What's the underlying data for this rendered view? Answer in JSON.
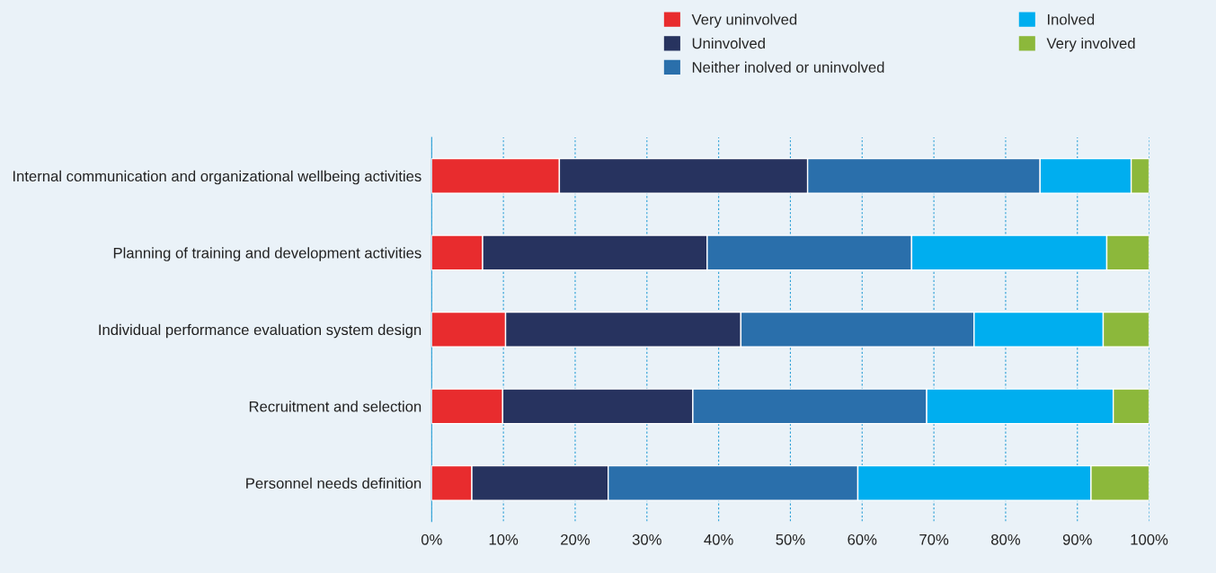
{
  "chart_data": {
    "type": "bar",
    "orientation": "horizontal",
    "stacked": true,
    "categories": [
      "Internal communication and organizational wellbeing activities",
      "Planning of training and development activities",
      "Individual performance evaluation system design",
      "Recruitment and selection",
      "Personnel needs definition"
    ],
    "series": [
      {
        "name": "Very uninvolved",
        "color": "#e82c2e",
        "values": [
          17.8,
          7.1,
          10.3,
          9.9,
          5.6
        ]
      },
      {
        "name": "Uninvolved",
        "color": "#27335f",
        "values": [
          34.6,
          31.3,
          32.8,
          26.5,
          19.0
        ]
      },
      {
        "name": "Neither inolved or uninvolved",
        "color": "#2a6fab",
        "values": [
          32.4,
          28.5,
          32.5,
          32.6,
          34.8
        ]
      },
      {
        "name": "Inolved",
        "color": "#00aeef",
        "values": [
          12.7,
          27.2,
          18.0,
          26.0,
          32.5
        ]
      },
      {
        "name": "Very involved",
        "color": "#8cb83b",
        "values": [
          2.5,
          5.9,
          6.4,
          5.0,
          8.1
        ]
      }
    ],
    "xlim": [
      0,
      100
    ],
    "xticks": [
      {
        "value": 0,
        "label": "0%"
      },
      {
        "value": 10,
        "label": "10%"
      },
      {
        "value": 20,
        "label": "20%"
      },
      {
        "value": 30,
        "label": "30%"
      },
      {
        "value": 40,
        "label": "40%"
      },
      {
        "value": 50,
        "label": "50%"
      },
      {
        "value": 60,
        "label": "60%"
      },
      {
        "value": 70,
        "label": "70%"
      },
      {
        "value": 80,
        "label": "80%"
      },
      {
        "value": 90,
        "label": "90%"
      },
      {
        "value": 100,
        "label": "100%"
      }
    ],
    "grid": "x",
    "legend": "top right"
  }
}
